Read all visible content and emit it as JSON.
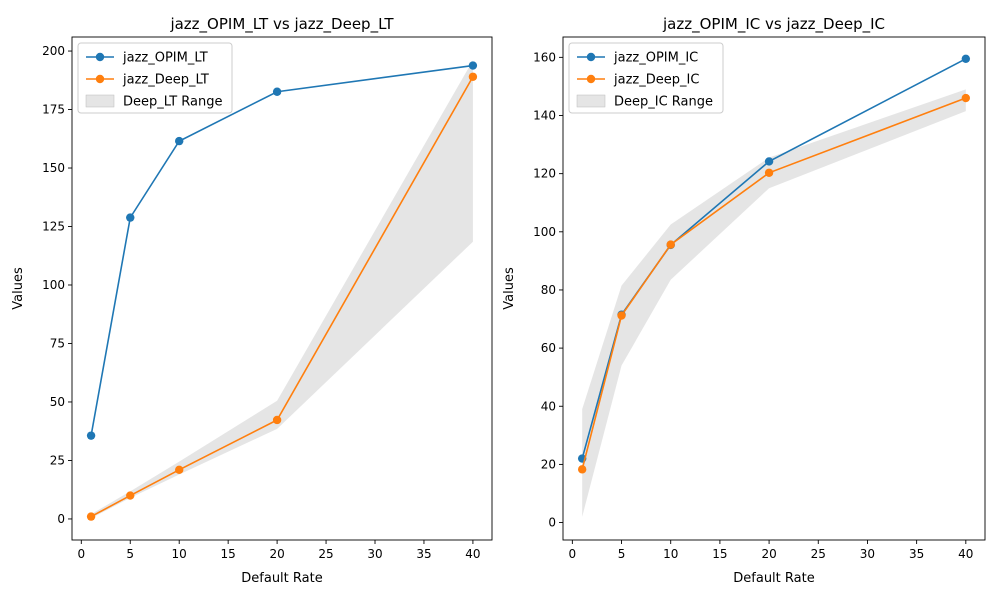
{
  "colors": {
    "opim": "#1f77b4",
    "deep": "#ff7f0e",
    "range_fill": "#cccccc",
    "axis": "#000000"
  },
  "chart_data": [
    {
      "type": "line",
      "title": "jazz_OPIM_LT vs jazz_Deep_LT",
      "xlabel": "Default Rate",
      "ylabel": "Values",
      "x": [
        1,
        5,
        10,
        20,
        40
      ],
      "xlim": [
        -0.95,
        41.95
      ],
      "ylim": [
        -9,
        206
      ],
      "xticks": [
        0,
        5,
        10,
        15,
        20,
        25,
        30,
        35,
        40
      ],
      "yticks": [
        0,
        25,
        50,
        75,
        100,
        125,
        150,
        175,
        200
      ],
      "series": [
        {
          "name": "jazz_OPIM_LT",
          "color_key": "opim",
          "values": [
            35.6,
            128.8,
            161.5,
            182.6,
            193.8
          ]
        },
        {
          "name": "jazz_Deep_LT",
          "color_key": "deep",
          "values": [
            1.0,
            10.0,
            21.0,
            42.3,
            189.0
          ]
        }
      ],
      "range": {
        "name": "Deep_LT Range",
        "lower": [
          0.3,
          9.0,
          19.0,
          38.5,
          118.5
        ],
        "upper": [
          2.0,
          11.8,
          24.5,
          50.5,
          196.0
        ]
      },
      "grid": false,
      "legend_position": "upper-left"
    },
    {
      "type": "line",
      "title": "jazz_OPIM_IC vs jazz_Deep_IC",
      "xlabel": "Default Rate",
      "ylabel": "Values",
      "x": [
        1,
        5,
        10,
        20,
        40
      ],
      "xlim": [
        -0.95,
        41.95
      ],
      "ylim": [
        -6,
        167
      ],
      "xticks": [
        0,
        5,
        10,
        15,
        20,
        25,
        30,
        35,
        40
      ],
      "yticks": [
        0,
        20,
        40,
        60,
        80,
        100,
        120,
        140,
        160
      ],
      "series": [
        {
          "name": "jazz_OPIM_IC",
          "color_key": "opim",
          "values": [
            22.0,
            71.5,
            95.5,
            124.2,
            159.5
          ]
        },
        {
          "name": "jazz_Deep_IC",
          "color_key": "deep",
          "values": [
            18.3,
            71.2,
            95.6,
            120.3,
            146.0
          ]
        }
      ],
      "range": {
        "name": "Deep_IC Range",
        "lower": [
          2.0,
          54.0,
          83.5,
          115.0,
          141.5
        ],
        "upper": [
          39.0,
          81.5,
          102.5,
          125.5,
          149.0
        ]
      },
      "grid": false,
      "legend_position": "upper-left"
    }
  ]
}
